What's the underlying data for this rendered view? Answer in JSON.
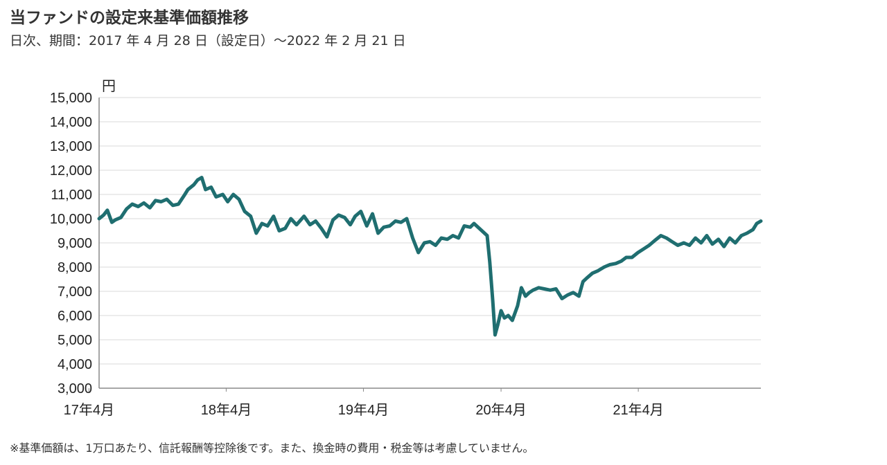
{
  "title": "当ファンドの設定来基準価額推移",
  "subtitle": "日次、期間：2017 年 4 月 28 日（設定日）～2022 年 2 月 21 日",
  "footnote": "※基準価額は、1万口あたり、信託報酬等控除後です。また、換金時の費用・税金等は考慮していません。",
  "colors": {
    "line": "#1f6e70",
    "grid": "#d9d9d9",
    "axis": "#888888"
  },
  "chart_data": {
    "type": "line",
    "ylabel": "円",
    "ylim": [
      3000,
      15000
    ],
    "yticks": [
      3000,
      4000,
      5000,
      6000,
      7000,
      8000,
      9000,
      10000,
      11000,
      12000,
      13000,
      14000,
      15000
    ],
    "ytick_labels": [
      "3,000",
      "4,000",
      "5,000",
      "6,000",
      "7,000",
      "8,000",
      "9,000",
      "10,000",
      "11,000",
      "12,000",
      "13,000",
      "14,000",
      "15,000"
    ],
    "xlim": [
      "2017-04-28",
      "2022-02-21"
    ],
    "xticks": [
      "2017-04",
      "2018-04",
      "2019-04",
      "2020-04",
      "2021-04"
    ],
    "xtick_labels": [
      "17年4月",
      "18年4月",
      "19年4月",
      "20年4月",
      "21年4月"
    ],
    "series": [
      {
        "x": [
          "2017-04-28",
          "2017-05-10",
          "2017-05-20",
          "2017-06-01",
          "2017-06-10",
          "2017-06-25",
          "2017-07-10",
          "2017-07-25",
          "2017-08-10",
          "2017-08-25",
          "2017-09-10",
          "2017-09-25",
          "2017-10-10",
          "2017-10-25",
          "2017-11-10",
          "2017-11-25",
          "2017-12-10",
          "2017-12-20",
          "2018-01-05",
          "2018-01-15",
          "2018-01-26",
          "2018-02-05",
          "2018-02-20",
          "2018-03-05",
          "2018-03-23",
          "2018-04-05",
          "2018-04-20",
          "2018-05-05",
          "2018-05-20",
          "2018-06-05",
          "2018-06-20",
          "2018-07-05",
          "2018-07-20",
          "2018-08-05",
          "2018-08-20",
          "2018-09-05",
          "2018-09-20",
          "2018-10-05",
          "2018-10-25",
          "2018-11-10",
          "2018-11-25",
          "2018-12-10",
          "2018-12-25",
          "2019-01-10",
          "2019-01-25",
          "2019-02-10",
          "2019-02-25",
          "2019-03-10",
          "2019-03-25",
          "2019-04-10",
          "2019-04-25",
          "2019-05-10",
          "2019-05-25",
          "2019-06-10",
          "2019-06-25",
          "2019-07-10",
          "2019-07-25",
          "2019-08-10",
          "2019-08-25",
          "2019-09-10",
          "2019-09-25",
          "2019-10-10",
          "2019-10-25",
          "2019-11-10",
          "2019-11-25",
          "2019-12-10",
          "2019-12-25",
          "2020-01-10",
          "2020-01-20",
          "2020-02-10",
          "2020-02-24",
          "2020-03-02",
          "2020-03-10",
          "2020-03-16",
          "2020-03-23",
          "2020-04-01",
          "2020-04-10",
          "2020-04-20",
          "2020-05-01",
          "2020-05-15",
          "2020-05-25",
          "2020-06-05",
          "2020-06-15",
          "2020-06-25",
          "2020-07-10",
          "2020-07-25",
          "2020-08-10",
          "2020-08-25",
          "2020-09-10",
          "2020-09-25",
          "2020-10-10",
          "2020-10-25",
          "2020-11-05",
          "2020-11-15",
          "2020-11-30",
          "2020-12-15",
          "2020-12-31",
          "2021-01-15",
          "2021-01-31",
          "2021-02-15",
          "2021-02-28",
          "2021-03-15",
          "2021-03-31",
          "2021-04-15",
          "2021-04-30",
          "2021-05-15",
          "2021-05-31",
          "2021-06-15",
          "2021-06-30",
          "2021-07-15",
          "2021-07-31",
          "2021-08-15",
          "2021-08-31",
          "2021-09-15",
          "2021-09-30",
          "2021-10-15",
          "2021-10-31",
          "2021-11-15",
          "2021-11-30",
          "2021-12-15",
          "2021-12-31",
          "2022-01-15",
          "2022-01-31",
          "2022-02-10",
          "2022-02-21"
        ],
        "y": [
          10000,
          10150,
          10350,
          9850,
          9950,
          10050,
          10400,
          10600,
          10500,
          10650,
          10450,
          10750,
          10700,
          10800,
          10550,
          10600,
          10950,
          11200,
          11400,
          11600,
          11700,
          11200,
          11300,
          10900,
          11000,
          10700,
          11000,
          10800,
          10300,
          10100,
          9400,
          9800,
          9700,
          10100,
          9500,
          9600,
          10000,
          9750,
          10100,
          9750,
          9900,
          9600,
          9250,
          9950,
          10150,
          10050,
          9750,
          10100,
          10300,
          9700,
          10200,
          9400,
          9650,
          9700,
          9900,
          9850,
          10000,
          9200,
          8600,
          9000,
          9050,
          8900,
          9200,
          9150,
          9300,
          9200,
          9700,
          9650,
          9800,
          9500,
          9300,
          8200,
          6600,
          5200,
          5600,
          6200,
          5900,
          6000,
          5800,
          6400,
          7150,
          6800,
          6950,
          7050,
          7150,
          7100,
          7050,
          7100,
          6700,
          6850,
          6950,
          6800,
          7400,
          7550,
          7750,
          7850,
          8000,
          8100,
          8150,
          8250,
          8400,
          8400,
          8600,
          8750,
          8900,
          9100,
          9300,
          9200,
          9050,
          8900,
          9000,
          8900,
          9200,
          9000,
          9300,
          8950,
          9150,
          8850,
          9200,
          9000,
          9300,
          9400,
          9550,
          9800,
          9900
        ]
      }
    ]
  }
}
